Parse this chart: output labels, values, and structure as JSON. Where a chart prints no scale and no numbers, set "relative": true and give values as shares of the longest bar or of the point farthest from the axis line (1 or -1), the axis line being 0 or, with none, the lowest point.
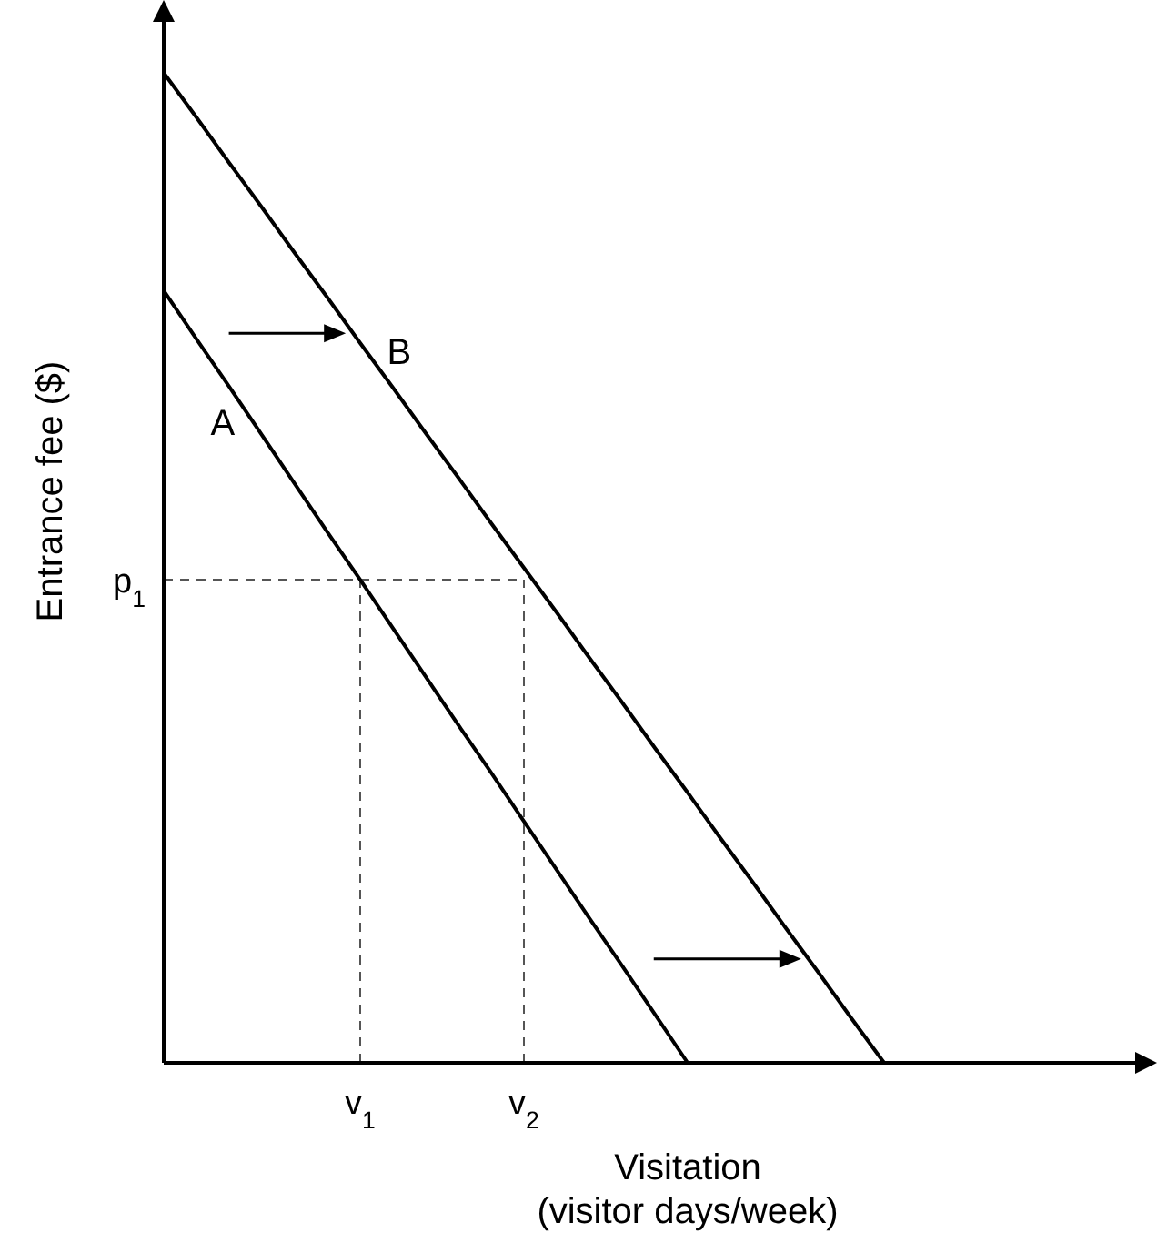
{
  "chart_data": {
    "type": "line",
    "relative": true,
    "xlabel": "Visitation\n(visitor days/week)",
    "ylabel": "Entrance fee ($)",
    "categories": [
      null,
      null,
      null,
      null,
      null,
      null,
      "v$_{1}$",
      null,
      null,
      null,
      null,
      "v$_{2}$",
      null,
      null,
      null,
      null,
      null,
      null,
      null,
      null,
      null,
      null,
      null,
      null,
      null,
      null,
      null,
      null,
      null,
      null,
      null
    ],
    "annotations": [
      "p$_{1}$"
    ],
    "series": [
      {
        "name": "A",
        "color": "#000000",
        "values": [
          0.78,
          0.731,
          0.683,
          0.634,
          0.585,
          0.536,
          0.488,
          0.439,
          0.39,
          0.341,
          0.293,
          0.244,
          0.195,
          0.146,
          0.098,
          0.049,
          0,
          null,
          null,
          null,
          null,
          null,
          null,
          null,
          null,
          null,
          null,
          null,
          null,
          null,
          null
        ]
      },
      {
        "name": "B",
        "color": "#000000",
        "values": [
          1,
          0.955,
          0.909,
          0.864,
          0.818,
          0.773,
          0.727,
          0.682,
          0.636,
          0.591,
          0.545,
          0.5,
          0.455,
          0.409,
          0.364,
          0.318,
          0.273,
          0.227,
          0.182,
          0.136,
          0.091,
          0.045,
          0,
          null,
          null,
          null,
          null,
          null,
          null,
          null,
          null
        ]
      }
    ],
    "line_style": "solid",
    "marker": "none"
  }
}
